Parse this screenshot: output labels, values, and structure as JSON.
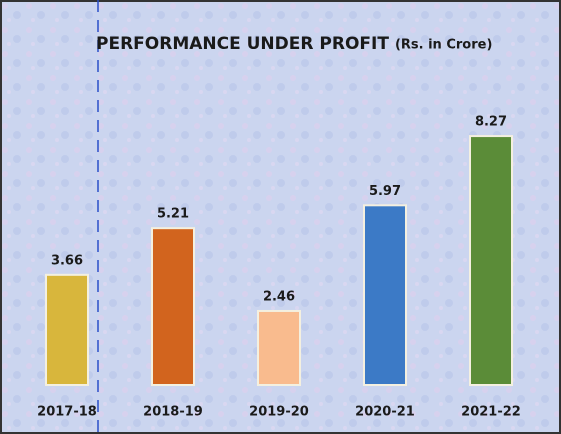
{
  "chart_data": {
    "type": "bar",
    "title": "PERFORMANCE UNDER PROFIT",
    "subtitle": "(Rs. in Crore)",
    "categories": [
      "2017-18",
      "2018-19",
      "2019-20",
      "2020-21",
      "2021-22"
    ],
    "values": [
      3.66,
      5.21,
      2.46,
      5.97,
      8.27
    ],
    "colors": [
      "#d8b63c",
      "#d2641e",
      "#f9bb8e",
      "#3c7ac6",
      "#5b8c38"
    ],
    "ylim": [
      0,
      10
    ]
  }
}
